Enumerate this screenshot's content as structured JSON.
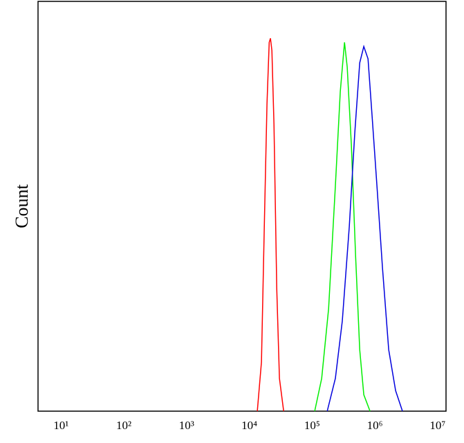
{
  "chart_data": {
    "type": "line",
    "y_label": "Count",
    "xscale": "log",
    "xlim": [
      4.3,
      13600000
    ],
    "ylim": [
      0,
      100
    ],
    "xticks": [
      {
        "value": 10,
        "label": "10¹"
      },
      {
        "value": 100,
        "label": "10²"
      },
      {
        "value": 1000,
        "label": "10³"
      },
      {
        "value": 10000,
        "label": "10⁴"
      },
      {
        "value": 100000,
        "label": "10⁵"
      },
      {
        "value": 1000000,
        "label": "10⁶"
      },
      {
        "value": 10000000,
        "label": "10⁷"
      }
    ],
    "series": [
      {
        "color": "#ff0000",
        "x": [
          13400,
          15600,
          17300,
          19100,
          20700,
          21700,
          22900,
          24700,
          27300,
          30200,
          35200
        ],
        "values": [
          0,
          12,
          45,
          75,
          90,
          91,
          88,
          70,
          30,
          8,
          0
        ]
      },
      {
        "color": "#00ee00",
        "x": [
          110000,
          142000,
          183000,
          235000,
          281000,
          328000,
          362000,
          422000,
          492000,
          573000,
          667000,
          838000
        ],
        "values": [
          0,
          8,
          25,
          55,
          78,
          90,
          84,
          65,
          38,
          15,
          4,
          0
        ]
      },
      {
        "color": "#0000dd",
        "x": [
          174000,
          235000,
          303000,
          391000,
          479000,
          573000,
          667000,
          777000,
          904000,
          1080000,
          1320000,
          1660000,
          2140000,
          2750000
        ],
        "values": [
          0,
          8,
          22,
          45,
          68,
          85,
          89,
          86,
          72,
          55,
          35,
          15,
          5,
          0
        ]
      }
    ]
  }
}
